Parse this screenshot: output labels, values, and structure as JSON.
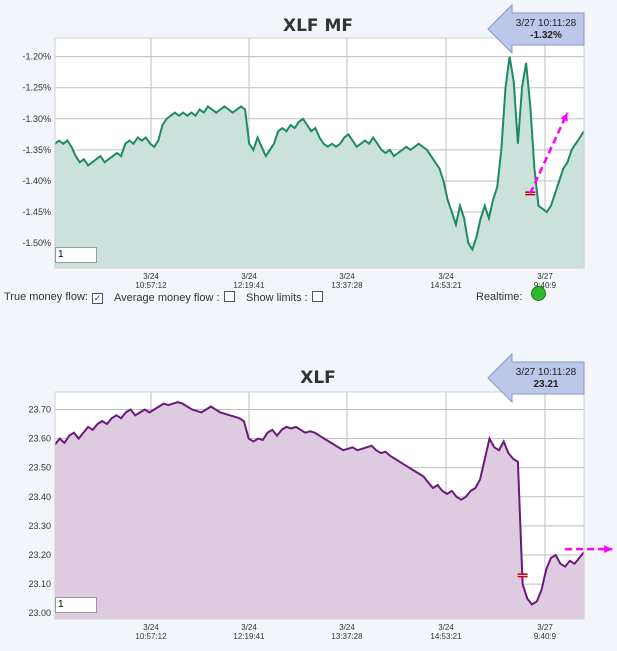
{
  "chart_data": [
    {
      "type": "area",
      "title": "XLF MF",
      "ylim": [
        -1.54,
        -1.17
      ],
      "yticks": [
        -1.2,
        -1.25,
        -1.3,
        -1.35,
        -1.4,
        -1.45,
        -1.5
      ],
      "ytick_labels": [
        "-1.20%",
        "-1.25%",
        "-1.30%",
        "-1.35%",
        "-1.40%",
        "-1.45%",
        "-1.50%"
      ],
      "xtick_labels": [
        [
          "3/24",
          "10:57:12"
        ],
        [
          "3/24",
          "12:19:41"
        ],
        [
          "3/24",
          "13:37:28"
        ],
        [
          "3/24",
          "14:53:21"
        ],
        [
          "3/27",
          "9:40:9"
        ]
      ],
      "grid": true,
      "series": [
        {
          "color": "#1e8a62",
          "fill": "#cbe2dc",
          "values": [
            -1.34,
            -1.335,
            -1.34,
            -1.335,
            -1.345,
            -1.36,
            -1.37,
            -1.365,
            -1.375,
            -1.37,
            -1.365,
            -1.36,
            -1.37,
            -1.365,
            -1.36,
            -1.355,
            -1.36,
            -1.34,
            -1.335,
            -1.34,
            -1.33,
            -1.335,
            -1.33,
            -1.34,
            -1.345,
            -1.335,
            -1.31,
            -1.3,
            -1.295,
            -1.29,
            -1.295,
            -1.29,
            -1.295,
            -1.29,
            -1.295,
            -1.285,
            -1.29,
            -1.28,
            -1.285,
            -1.29,
            -1.285,
            -1.28,
            -1.285,
            -1.29,
            -1.285,
            -1.28,
            -1.285,
            -1.34,
            -1.35,
            -1.33,
            -1.345,
            -1.36,
            -1.35,
            -1.34,
            -1.32,
            -1.315,
            -1.32,
            -1.31,
            -1.315,
            -1.305,
            -1.3,
            -1.31,
            -1.32,
            -1.315,
            -1.33,
            -1.34,
            -1.345,
            -1.34,
            -1.345,
            -1.34,
            -1.33,
            -1.325,
            -1.335,
            -1.345,
            -1.34,
            -1.335,
            -1.34,
            -1.33,
            -1.34,
            -1.35,
            -1.355,
            -1.35,
            -1.36,
            -1.355,
            -1.35,
            -1.345,
            -1.35,
            -1.345,
            -1.34,
            -1.345,
            -1.35,
            -1.36,
            -1.37,
            -1.38,
            -1.4,
            -1.43,
            -1.45,
            -1.47,
            -1.44,
            -1.46,
            -1.5,
            -1.51,
            -1.49,
            -1.46,
            -1.44,
            -1.46,
            -1.43,
            -1.41,
            -1.35,
            -1.25,
            -1.2,
            -1.24,
            -1.34,
            -1.25,
            -1.21,
            -1.28,
            -1.38,
            -1.44,
            -1.445,
            -1.45,
            -1.44,
            -1.42,
            -1.4,
            -1.38,
            -1.37,
            -1.35,
            -1.34,
            -1.33,
            -1.32
          ]
        }
      ],
      "annotations": [
        {
          "type": "marker",
          "x_index": 115,
          "value": -1.42,
          "color": "#cc0000"
        },
        {
          "type": "trend-arrow",
          "from": [
            115,
            -1.42
          ],
          "to": [
            124,
            -1.29
          ],
          "color": "#ff00ff"
        }
      ],
      "callout": {
        "time": "3/27 10:11:28",
        "value": "-1.32%"
      }
    },
    {
      "type": "area",
      "title": "XLF",
      "ylim": [
        22.98,
        23.76
      ],
      "yticks": [
        23.7,
        23.6,
        23.5,
        23.4,
        23.3,
        23.2,
        23.1,
        23.0
      ],
      "ytick_labels": [
        "23.70",
        "23.60",
        "23.50",
        "23.40",
        "23.30",
        "23.20",
        "23.10",
        "23.00"
      ],
      "xtick_labels": [
        [
          "3/24",
          "10:57:12"
        ],
        [
          "3/24",
          "12:19:41"
        ],
        [
          "3/24",
          "13:37:28"
        ],
        [
          "3/24",
          "14:53:21"
        ],
        [
          "3/27",
          "9:40:9"
        ]
      ],
      "grid": true,
      "series": [
        {
          "color": "#6a1a7a",
          "fill": "#decbe0",
          "values": [
            23.58,
            23.6,
            23.585,
            23.61,
            23.62,
            23.6,
            23.62,
            23.64,
            23.63,
            23.65,
            23.66,
            23.65,
            23.67,
            23.68,
            23.67,
            23.69,
            23.7,
            23.68,
            23.69,
            23.7,
            23.69,
            23.7,
            23.71,
            23.72,
            23.715,
            23.72,
            23.725,
            23.72,
            23.71,
            23.7,
            23.695,
            23.69,
            23.7,
            23.71,
            23.7,
            23.69,
            23.685,
            23.68,
            23.675,
            23.67,
            23.66,
            23.6,
            23.59,
            23.6,
            23.595,
            23.62,
            23.63,
            23.61,
            23.63,
            23.64,
            23.635,
            23.64,
            23.63,
            23.62,
            23.625,
            23.62,
            23.61,
            23.6,
            23.59,
            23.58,
            23.57,
            23.56,
            23.565,
            23.57,
            23.56,
            23.565,
            23.57,
            23.575,
            23.56,
            23.55,
            23.555,
            23.54,
            23.53,
            23.52,
            23.51,
            23.5,
            23.49,
            23.48,
            23.47,
            23.45,
            23.43,
            23.44,
            23.42,
            23.41,
            23.42,
            23.4,
            23.39,
            23.4,
            23.42,
            23.43,
            23.46,
            23.53,
            23.6,
            23.57,
            23.56,
            23.59,
            23.55,
            23.53,
            23.52,
            23.1,
            23.05,
            23.03,
            23.04,
            23.08,
            23.15,
            23.19,
            23.2,
            23.17,
            23.16,
            23.18,
            23.17,
            23.19,
            23.21
          ]
        }
      ],
      "annotations": [
        {
          "type": "marker",
          "x_index": 99,
          "value": 23.13,
          "color": "#cc0000"
        },
        {
          "type": "trend-arrow",
          "from": [
            108,
            23.22
          ],
          "to": [
            118,
            23.22
          ],
          "color": "#ff00ff"
        }
      ],
      "callout": {
        "time": "3/27 10:11:28",
        "value": "23.21"
      }
    }
  ],
  "mf_input_value": "1",
  "price_input_value": "1",
  "controls": {
    "true_money_flow_label": "True money flow:",
    "true_money_flow_checked": true,
    "average_money_flow_label": "Average money flow :",
    "average_money_flow_checked": false,
    "show_limits_label": "Show limits :",
    "show_limits_checked": false,
    "realtime_label": "Realtime:",
    "realtime_color": "#2eb82e"
  }
}
